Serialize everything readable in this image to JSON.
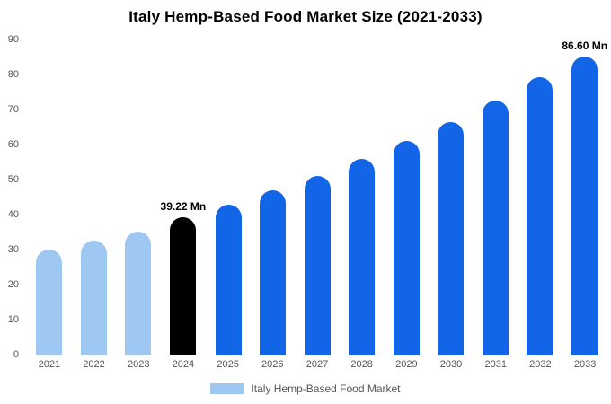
{
  "title": "Italy Hemp-Based Food Market Size (2021-2033)",
  "legend": {
    "label": "Italy Hemp-Based Food Market"
  },
  "colors": {
    "historical": "#9ec7f2",
    "current": "#000000",
    "forecast": "#1365e8",
    "axis_text": "#555555",
    "background": "#ffffff"
  },
  "y_axis": {
    "min": 0,
    "max": 90,
    "step": 10,
    "ticks": [
      90,
      80,
      70,
      60,
      50,
      40,
      30,
      20,
      10,
      0
    ]
  },
  "chart_data": {
    "type": "bar",
    "title": "Italy Hemp-Based Food Market Size (2021-2033)",
    "categories": [
      "2021",
      "2022",
      "2023",
      "2024",
      "2025",
      "2026",
      "2027",
      "2028",
      "2029",
      "2030",
      "2031",
      "2032",
      "2033"
    ],
    "values": [
      30,
      32.5,
      35,
      39.22,
      42.8,
      46.8,
      51,
      55.8,
      60.9,
      66.5,
      72.6,
      79.3,
      86.6
    ],
    "bar_roles": [
      "historical",
      "historical",
      "historical",
      "current",
      "forecast",
      "forecast",
      "forecast",
      "forecast",
      "forecast",
      "forecast",
      "forecast",
      "forecast",
      "forecast"
    ],
    "annotations": [
      {
        "category": "2024",
        "text": "39.22 Mn"
      },
      {
        "category": "2033",
        "text": "86.60 Mn"
      }
    ],
    "xlabel": "",
    "ylabel": "",
    "ylim": [
      0,
      90
    ],
    "grid": false,
    "legend_position": "bottom"
  }
}
